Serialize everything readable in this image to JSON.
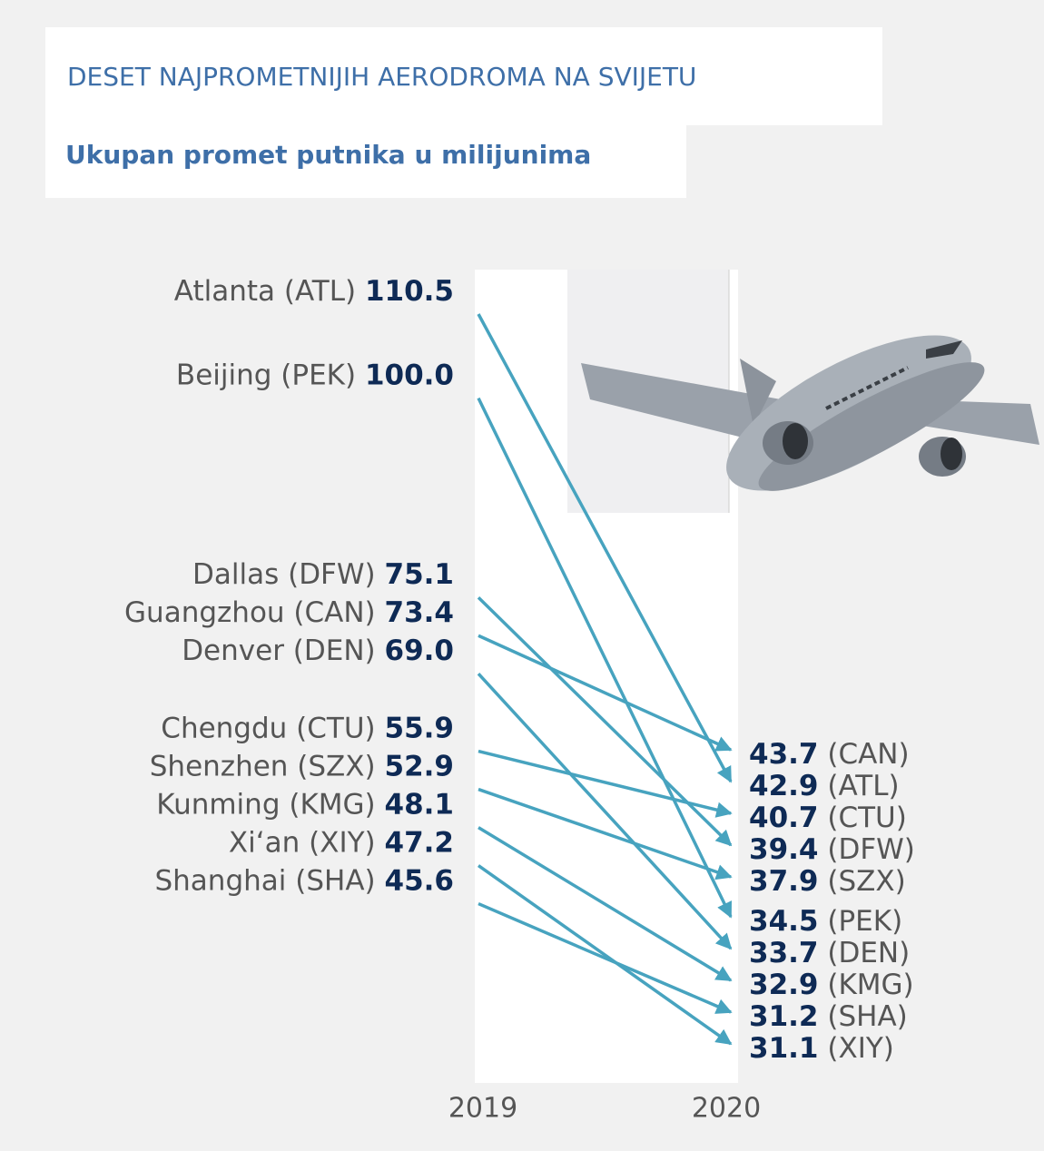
{
  "chart_data": {
    "type": "slope",
    "title": "DESET NAJPROMETNIJIH AERODROMA NA SVIJETU",
    "subtitle": "Ukupan promet putnika u milijunima",
    "x": [
      "2019",
      "2020"
    ],
    "categories": [
      "Atlanta (ATL)",
      "Beijing (PEK)",
      "Dallas (DFW)",
      "Guangzhou (CAN)",
      "Denver (DEN)",
      "Chengdu (CTU)",
      "Shenzhen (SZX)",
      "Kunming (KMG)",
      "Xi‘an (XIY)",
      "Shanghai (SHA)"
    ],
    "codes": [
      "(ATL)",
      "(PEK)",
      "(DFW)",
      "(CAN)",
      "(DEN)",
      "(CTU)",
      "(SZX)",
      "(KMG)",
      "(XIY)",
      "(SHA)"
    ],
    "color": "#47a3bf",
    "series": [
      {
        "name": "2019",
        "values": [
          110.5,
          100.0,
          75.1,
          73.4,
          69.0,
          55.9,
          52.9,
          48.1,
          47.2,
          45.6
        ],
        "value_labels": [
          "110.5",
          "100.0",
          "75.1",
          "73.4",
          "69.0",
          "55.9",
          "52.9",
          "48.1",
          "47.2",
          "45.6"
        ]
      },
      {
        "name": "2020",
        "values": [
          42.9,
          34.5,
          39.4,
          43.7,
          33.7,
          40.7,
          37.9,
          32.9,
          31.1,
          31.2
        ]
      }
    ]
  }
}
